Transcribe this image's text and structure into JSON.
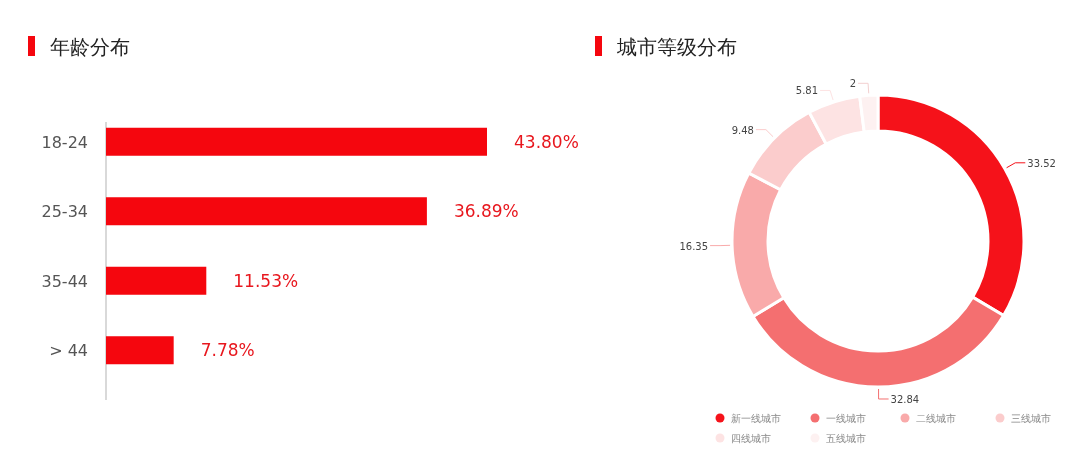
{
  "chart_data": [
    {
      "type": "bar",
      "title": "年龄分布",
      "orientation": "horizontal",
      "categories": [
        "18-24",
        "25-34",
        "35-44",
        "> 44"
      ],
      "values": [
        43.8,
        36.89,
        11.53,
        7.78
      ],
      "value_labels": [
        "43.80%",
        "36.89%",
        "11.53%",
        "7.78%"
      ],
      "color": "#f5060e"
    },
    {
      "type": "donut",
      "title": "城市等级分布",
      "categories": [
        "新一线城市",
        "一线城市",
        "二线城市",
        "三线城市",
        "四线城市",
        "五线城市"
      ],
      "values": [
        33.52,
        32.84,
        16.35,
        9.48,
        5.81,
        2
      ],
      "colors": [
        "#f5121a",
        "#f46f70",
        "#f9aaaa",
        "#fbcccc",
        "#fde3e3",
        "#fdf1f1"
      ],
      "data_labels": true,
      "legend": "bottom"
    }
  ]
}
